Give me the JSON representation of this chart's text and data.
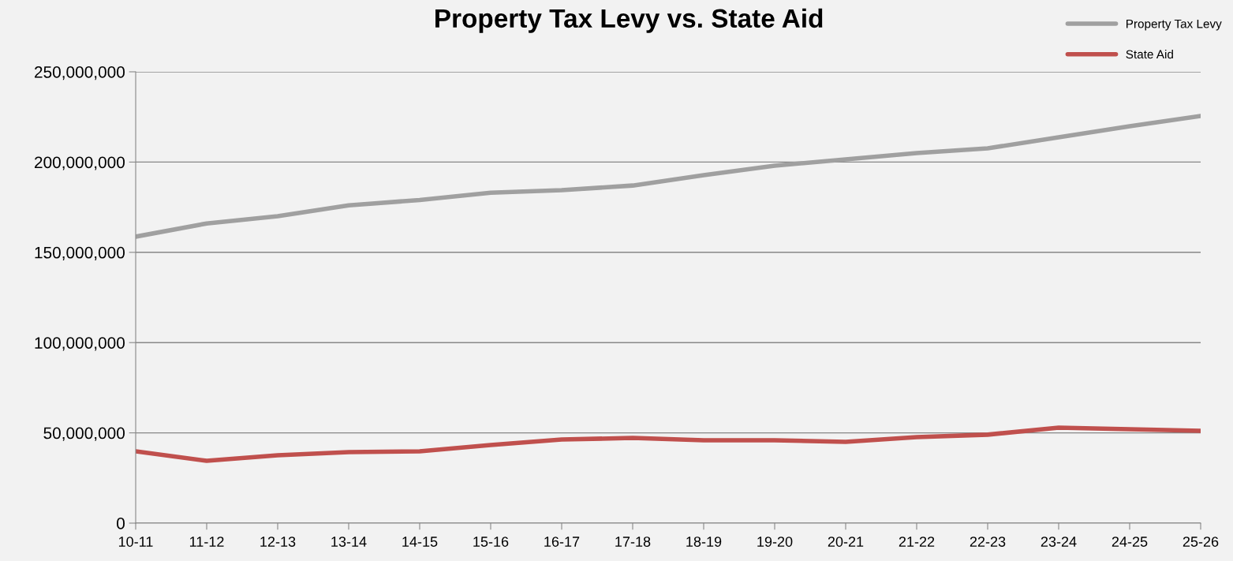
{
  "chart_data": {
    "type": "line",
    "title": "Property Tax Levy vs. State Aid",
    "categories": [
      "10-11",
      "11-12",
      "12-13",
      "13-14",
      "14-15",
      "15-16",
      "16-17",
      "17-18",
      "18-19",
      "19-20",
      "20-21",
      "21-22",
      "22-23",
      "23-24",
      "24-25",
      "25-26"
    ],
    "series": [
      {
        "name": "Property Tax Levy",
        "color": "#a0a0a0",
        "values": [
          158700000,
          166000000,
          170000000,
          176000000,
          179000000,
          183000000,
          184400000,
          187000000,
          192700000,
          198000000,
          201500000,
          205000000,
          207600000,
          213700000,
          219800000,
          225500000
        ]
      },
      {
        "name": "State Aid",
        "color": "#c0504d",
        "values": [
          39800000,
          34500000,
          37600000,
          39300000,
          39800000,
          43300000,
          46300000,
          47200000,
          45900000,
          45900000,
          45000000,
          47600000,
          49000000,
          52900000,
          52000000,
          51100000
        ]
      }
    ],
    "ylim": [
      0,
      250000000
    ],
    "yticks": [
      {
        "value": 0,
        "label": "0"
      },
      {
        "value": 50000000,
        "label": "50,000,000"
      },
      {
        "value": 100000000,
        "label": "100,000,000"
      },
      {
        "value": 150000000,
        "label": "150,000,000"
      },
      {
        "value": 200000000,
        "label": "200,000,000"
      },
      {
        "value": 250000000,
        "label": "250,000,000"
      }
    ],
    "grid": "y",
    "legend": "top right",
    "marker": "none",
    "line_style": "solid"
  }
}
